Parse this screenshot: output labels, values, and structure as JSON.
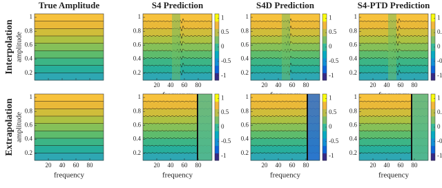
{
  "figure": {
    "columns": [
      "True Amplitude",
      "S4 Prediction",
      "S4D Prediction",
      "S4-PTD Prediction"
    ],
    "rows": [
      "Interpolation",
      "Extrapolation"
    ],
    "xlabel": "frequency",
    "ylabel": "amplitude",
    "xlim": [
      0,
      100
    ],
    "ylim": [
      0.1,
      1.05
    ],
    "xticks": [
      20,
      40,
      60,
      80
    ],
    "yticks": [
      0.2,
      0.4,
      0.6,
      0.8,
      1
    ],
    "clim": [
      -1.15,
      1.15
    ],
    "cticks": [
      -1,
      -0.5,
      0,
      0.5,
      1
    ]
  }
}
